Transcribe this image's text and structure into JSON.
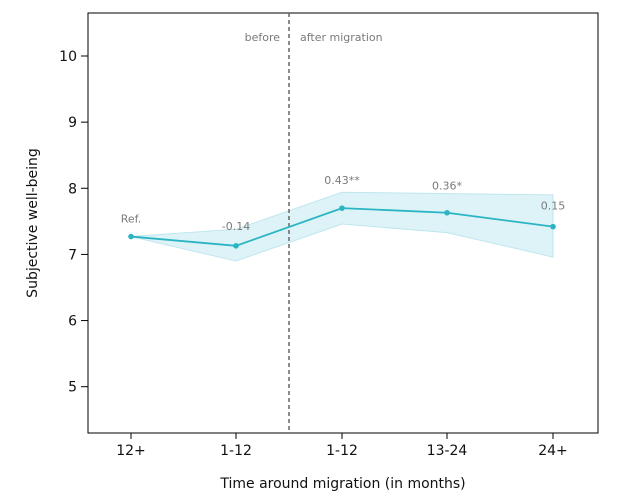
{
  "chart_data": {
    "type": "line",
    "title": "",
    "xlabel": "Time around migration (in months)",
    "ylabel": "Subjective well-being",
    "categories": [
      "12+",
      "1-12",
      "1-12",
      "13-24",
      "24+"
    ],
    "series": [
      {
        "name": "Subjective well-being",
        "values": [
          7.27,
          7.13,
          7.7,
          7.63,
          7.42
        ],
        "ci_lower": [
          7.27,
          6.9,
          7.46,
          7.33,
          6.96
        ],
        "ci_upper": [
          7.27,
          7.38,
          7.94,
          7.92,
          7.9
        ],
        "annotations": [
          "Ref.",
          "-0.14",
          "0.43**",
          "0.36*",
          "0.15"
        ]
      }
    ],
    "ylim": [
      4.3,
      10.65
    ],
    "yticks": [
      5,
      6,
      7,
      8,
      9,
      10
    ],
    "divider": {
      "after_category_index": 1,
      "left_label": "before",
      "right_label": "after migration"
    },
    "colors": {
      "line": "#2bb5c4",
      "band": "#ddf3f7",
      "band_edge": "#bfe6ee",
      "divider": "#666666",
      "axis": "#000000"
    },
    "grid": false,
    "legend": "none"
  }
}
